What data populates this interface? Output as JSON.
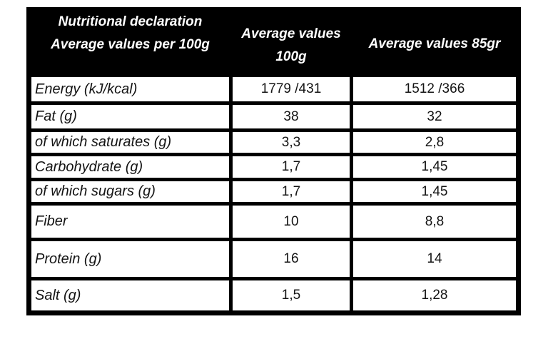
{
  "table": {
    "header": {
      "col1_line1": "Nutritional declaration",
      "col1_line2": "Average values per 100g",
      "col2_line1": "Average values",
      "col2_line2": "100g",
      "col3": "Average values 85gr"
    },
    "rows": [
      {
        "label": "Energy (kJ/kcal)",
        "v100": "1779 /431",
        "v85": "1512 /366"
      },
      {
        "label": "Fat (g)",
        "v100": "38",
        "v85": "32"
      },
      {
        "label": "of which saturates (g)",
        "v100": "3,3",
        "v85": "2,8"
      },
      {
        "label": "Carbohydrate (g)",
        "v100": "1,7",
        "v85": "1,45"
      },
      {
        "label": "of which sugars (g)",
        "v100": "1,7",
        "v85": "1,45"
      },
      {
        "label": "Fiber",
        "v100": "10",
        "v85": "8,8"
      },
      {
        "label": "Protein (g)",
        "v100": "16",
        "v85": "14"
      },
      {
        "label": "Salt (g)",
        "v100": "1,5",
        "v85": "1,28"
      }
    ],
    "colors": {
      "header_bg": "#000000",
      "header_text": "#ffffff",
      "cell_bg": "#ffffff",
      "border": "#000000",
      "body_text": "#141414"
    }
  }
}
